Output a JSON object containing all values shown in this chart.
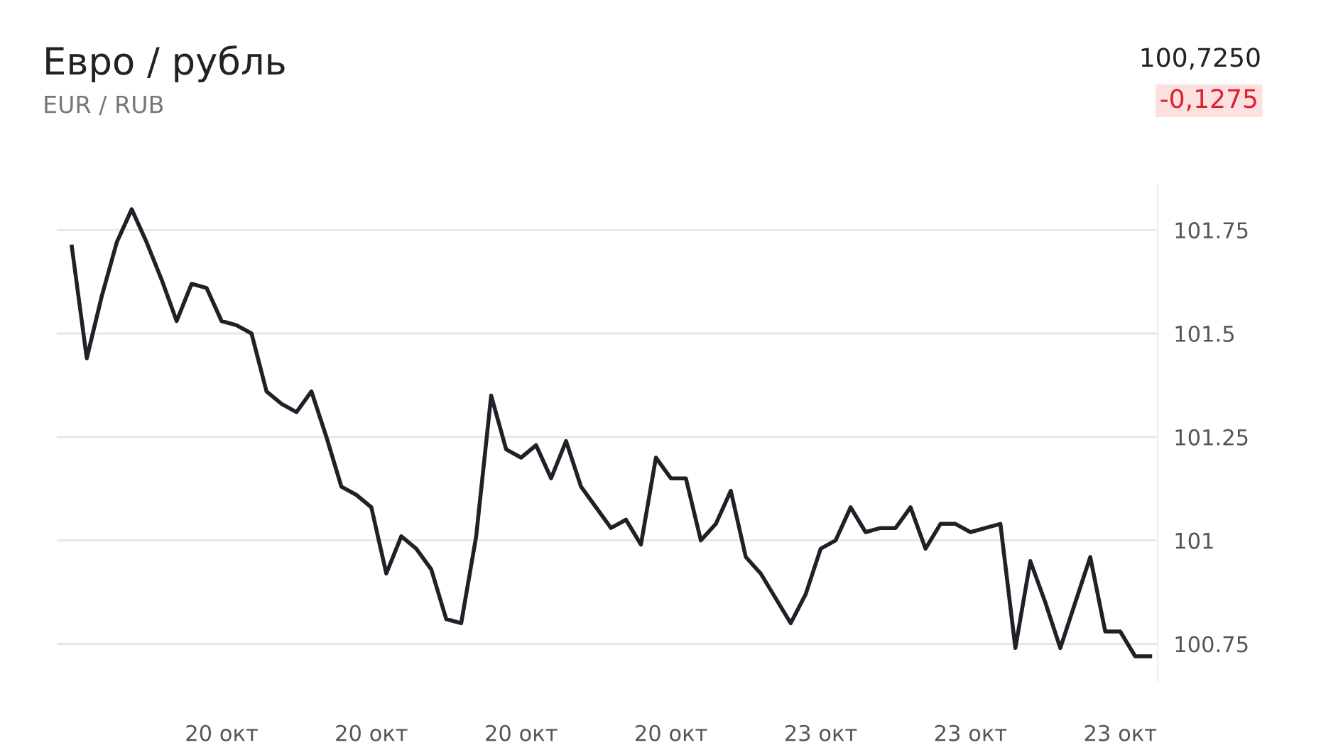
{
  "chart_data": {
    "type": "line",
    "title": "Евро / рубль",
    "subtitle": "EUR / RUB",
    "annotations": [
      "100,7250",
      "-0,1275"
    ],
    "categories": [
      null,
      null,
      null,
      null,
      null,
      null,
      null,
      null,
      null,
      null,
      "20 окт",
      null,
      null,
      null,
      null,
      null,
      null,
      null,
      null,
      null,
      "20 окт",
      null,
      null,
      null,
      null,
      null,
      null,
      null,
      null,
      null,
      "20 окт",
      null,
      null,
      null,
      null,
      null,
      null,
      null,
      null,
      null,
      "20 окт",
      null,
      null,
      null,
      null,
      null,
      null,
      null,
      null,
      null,
      "23 окт",
      null,
      null,
      null,
      null,
      null,
      null,
      null,
      null,
      null,
      "23 окт",
      null,
      null,
      null,
      null,
      null,
      null,
      null,
      null,
      null,
      "23 окт",
      null,
      null
    ],
    "series": [
      {
        "color": "#1e2128",
        "values": [
          101.71,
          101.44,
          101.59,
          101.72,
          101.8,
          101.72,
          101.63,
          101.53,
          101.62,
          101.61,
          101.53,
          101.52,
          101.5,
          101.36,
          101.33,
          101.31,
          101.36,
          101.25,
          101.13,
          101.11,
          101.08,
          100.92,
          101.01,
          100.98,
          100.93,
          100.81,
          100.8,
          101.01,
          101.35,
          101.22,
          101.2,
          101.23,
          101.15,
          101.24,
          101.13,
          101.08,
          101.03,
          101.05,
          100.99,
          101.2,
          101.15,
          101.15,
          101.0,
          101.04,
          101.12,
          100.96,
          100.92,
          100.86,
          100.8,
          100.87,
          100.98,
          101.0,
          101.08,
          101.02,
          101.03,
          101.03,
          101.08,
          100.98,
          101.04,
          101.04,
          101.02,
          101.03,
          101.04,
          100.74,
          100.95,
          100.85,
          100.74,
          100.85,
          100.96,
          100.78,
          100.78,
          100.72,
          100.72
        ]
      }
    ],
    "ylim": [
      100.66,
      101.86
    ],
    "yticks": [
      100.75,
      101,
      101.25,
      101.5,
      101.75
    ],
    "grid": "y",
    "marker": "none",
    "line_style": "solid"
  }
}
